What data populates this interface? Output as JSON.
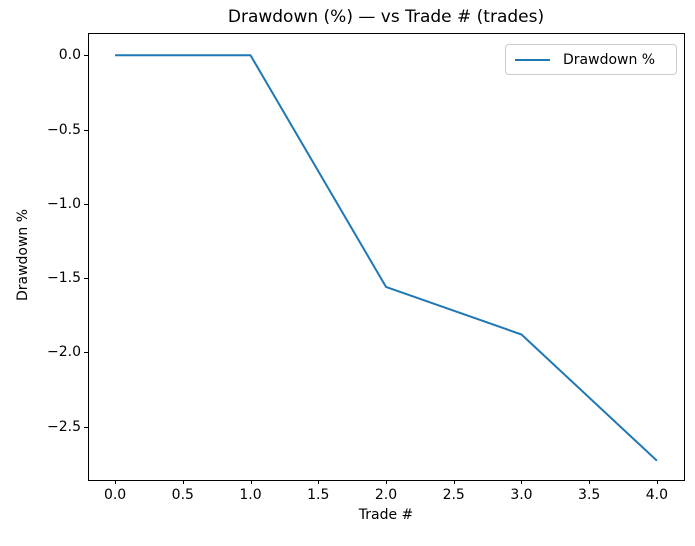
{
  "figure": {
    "background": "#ffffff",
    "text_color": "#000000"
  },
  "chart_data": {
    "type": "line",
    "title": "Drawdown (%) — vs Trade # (trades)",
    "xlabel": "Trade #",
    "ylabel": "Drawdown %",
    "x": [
      0,
      1,
      2,
      3,
      4
    ],
    "series": [
      {
        "name": "Drawdown %",
        "color": "#1f77b4",
        "values": [
          0.0,
          0.0,
          -1.56,
          -1.88,
          -2.73
        ]
      }
    ],
    "legend": {
      "entries": [
        "Drawdown %"
      ],
      "position": "upper right",
      "border_color": "#cccccc"
    },
    "xlim": [
      -0.2,
      4.2
    ],
    "ylim": [
      -2.86,
      0.15
    ],
    "xticks": {
      "values": [
        0,
        0.5,
        1,
        1.5,
        2,
        2.5,
        3,
        3.5,
        4
      ],
      "labels": [
        "0.0",
        "0.5",
        "1.0",
        "1.5",
        "2.0",
        "2.5",
        "3.0",
        "3.5",
        "4.0"
      ]
    },
    "yticks": {
      "values": [
        0,
        -0.5,
        -1,
        -1.5,
        -2,
        -2.5
      ],
      "labels": [
        "0.0",
        "−0.5",
        "−1.0",
        "−1.5",
        "−2.0",
        "−2.5"
      ]
    },
    "grid": false,
    "axis_color": "#000000"
  }
}
